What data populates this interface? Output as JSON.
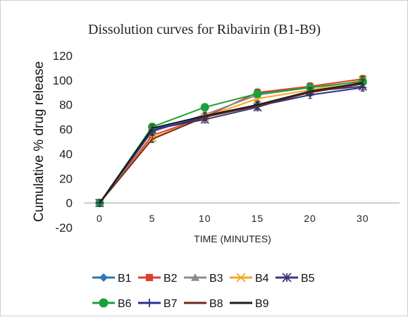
{
  "chart_data": {
    "type": "line",
    "title": "Dissolution curves for Ribavirin (B1-B9)",
    "xlabel": "TIME (MINUTES)",
    "ylabel": "Cumulative % drug release",
    "categories": [
      "0",
      "5",
      "10",
      "15",
      "20",
      "30"
    ],
    "ylim": [
      -20,
      120
    ],
    "yticks": [
      -20,
      0,
      20,
      40,
      60,
      80,
      100,
      120
    ],
    "grid": false,
    "legend_position": "bottom",
    "series": [
      {
        "name": "B1",
        "color": "#2E75B6",
        "marker": "diamond",
        "values": [
          0,
          60,
          70,
          80,
          90,
          97
        ]
      },
      {
        "name": "B2",
        "color": "#E03C2C",
        "marker": "square",
        "values": [
          0,
          55,
          70,
          90,
          95,
          101
        ]
      },
      {
        "name": "B3",
        "color": "#8C8C8C",
        "marker": "triangle",
        "values": [
          0,
          58,
          72,
          88,
          94,
          99
        ]
      },
      {
        "name": "B4",
        "color": "#F5A623",
        "marker": "x",
        "values": [
          0,
          53,
          70,
          85,
          92,
          100
        ]
      },
      {
        "name": "B5",
        "color": "#3B3A7A",
        "marker": "star",
        "values": [
          0,
          60,
          68,
          78,
          91,
          95
        ]
      },
      {
        "name": "B6",
        "color": "#1E9E3A",
        "marker": "circle",
        "values": [
          0,
          62,
          78,
          89,
          94,
          99
        ]
      },
      {
        "name": "B7",
        "color": "#2B2F8F",
        "marker": "plus",
        "values": [
          0,
          59,
          70,
          79,
          88,
          94
        ]
      },
      {
        "name": "B8",
        "color": "#6E2A1A",
        "marker": "none",
        "values": [
          0,
          52,
          70,
          79,
          90,
          97
        ]
      },
      {
        "name": "B9",
        "color": "#1A1A1A",
        "marker": "none",
        "values": [
          0,
          61,
          71,
          80,
          91,
          98
        ]
      }
    ]
  }
}
